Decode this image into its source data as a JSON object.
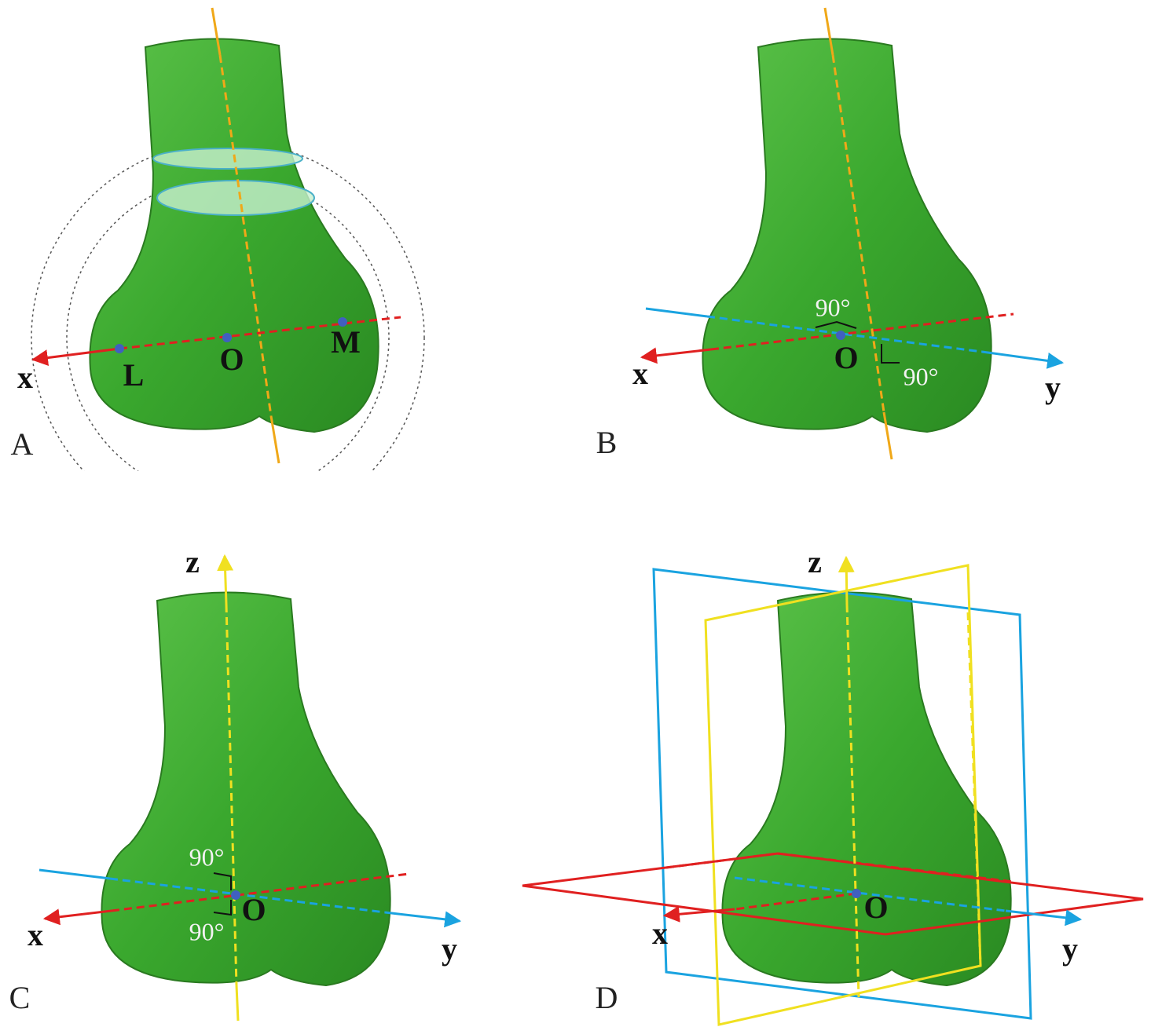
{
  "panels": [
    {
      "label": "A",
      "texts": [
        "x",
        "L",
        "O",
        "M"
      ]
    },
    {
      "label": "B",
      "texts": [
        "90°",
        "x",
        "O",
        "90°",
        "y"
      ]
    },
    {
      "label": "C",
      "texts": [
        "z",
        "90°",
        "x",
        "O",
        "90°",
        "y"
      ]
    },
    {
      "label": "D",
      "texts": [
        "z",
        "x",
        "O",
        "y"
      ]
    }
  ]
}
